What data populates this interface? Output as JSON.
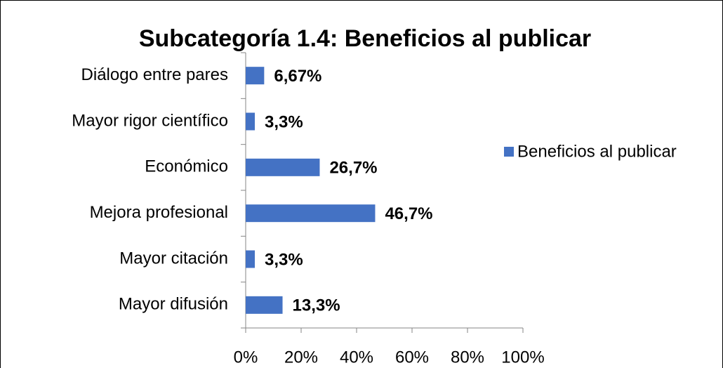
{
  "chart_data": {
    "type": "bar",
    "orientation": "horizontal",
    "title": "Subcategoría 1.4: Beneficios al publicar",
    "categories": [
      "Diálogo entre pares",
      "Mayor rigor científico",
      "Económico",
      "Mejora profesional",
      "Mayor citación",
      "Mayor difusión"
    ],
    "series": [
      {
        "name": "Beneficios al publicar",
        "color": "#4472c4",
        "values": [
          6.67,
          3.3,
          26.7,
          46.7,
          3.3,
          13.3
        ],
        "value_labels": [
          "6,67%",
          "3,3%",
          "26,7%",
          "46,7%",
          "3,3%",
          "13,3%"
        ]
      }
    ],
    "xlim": [
      0,
      100
    ],
    "xticks": [
      {
        "value": 0,
        "label": "0%"
      },
      {
        "value": 20,
        "label": "20%"
      },
      {
        "value": 40,
        "label": "40%"
      },
      {
        "value": 60,
        "label": "60%"
      },
      {
        "value": 80,
        "label": "80%"
      },
      {
        "value": 100,
        "label": "100%"
      }
    ],
    "grid": false,
    "legend": "right"
  }
}
